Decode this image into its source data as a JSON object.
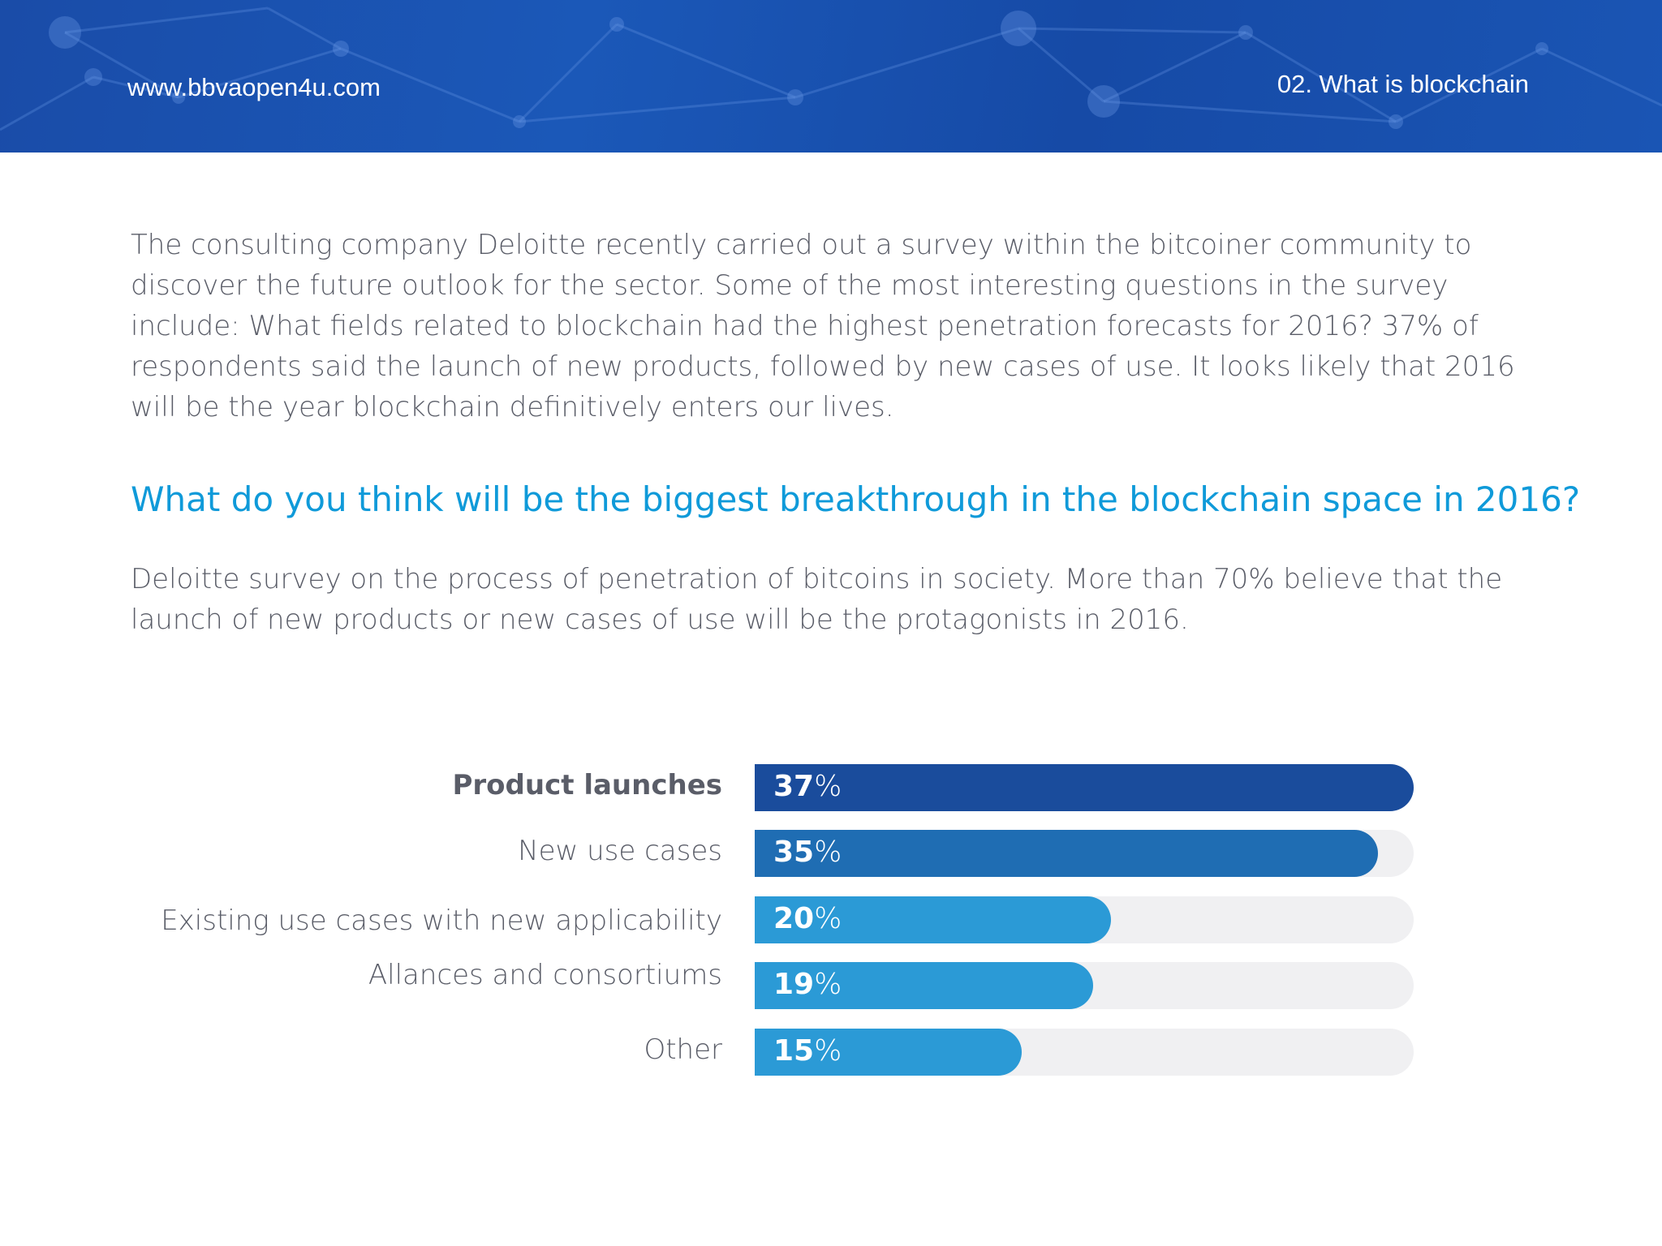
{
  "header": {
    "site_url": "www.bbvaopen4u.com",
    "section_label": "02. What is blockchain"
  },
  "intro": "The consulting company Deloitte recently carried out a survey within the bitcoiner community to discover the future outlook for the sector. Some of the most interesting questions in the survey include: What fields related to blockchain had the highest penetration forecasts for 2016? 37% of respondents said the launch of new products, followed by new cases of use. It looks likely that 2016 will be the year blockchain definitively enters our lives.",
  "question": "What do you think will be the biggest breakthrough in the blockchain space in 2016?",
  "caption": "Deloitte survey on the process of penetration of bitcoins in society. More than 70% believe that the launch of new products or new cases of use will be the protagonists in 2016.",
  "colors": {
    "header_bg": "#1b52b0",
    "question": "#0f9ad9",
    "body_text": "#5a5d68",
    "track": "#f0f0f2",
    "bar_dark": "#1a4c9c",
    "bar_mid": "#1f6db3",
    "bar_light": "#2b9ad6"
  },
  "chart_data": {
    "type": "bar",
    "orientation": "horizontal",
    "categories": [
      "Product launches",
      "New use cases",
      "Existing use cases with new applicability",
      "Allances and consortiums",
      "Other"
    ],
    "values": [
      37,
      35,
      20,
      19,
      15
    ],
    "value_labels": [
      {
        "num": "37",
        "unit": "%"
      },
      {
        "num": "35",
        "unit": "%"
      },
      {
        "num": "20",
        "unit": "%"
      },
      {
        "num": "19",
        "unit": "%"
      },
      {
        "num": "15",
        "unit": "%"
      }
    ],
    "bar_colors": [
      "#1a4c9c",
      "#1f6db3",
      "#2b9ad6",
      "#2b9ad6",
      "#2b9ad6"
    ],
    "xlim": [
      0,
      37
    ],
    "title": "",
    "xlabel": "",
    "ylabel": "",
    "grid": false
  }
}
